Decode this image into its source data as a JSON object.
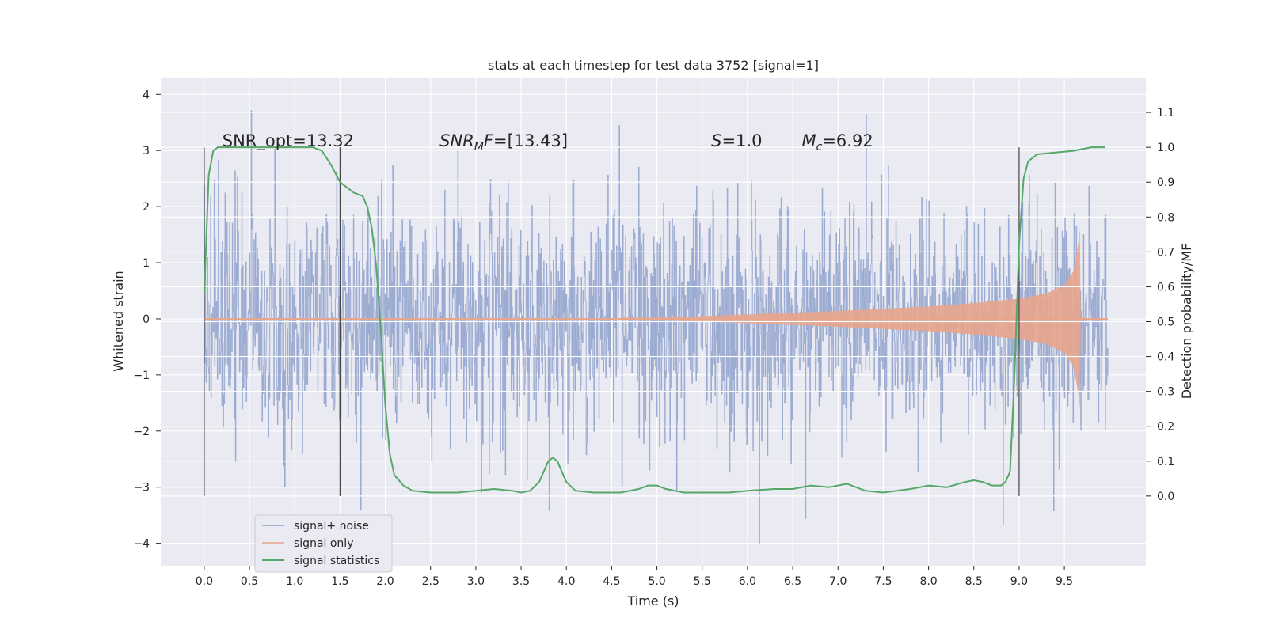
{
  "chart_data": {
    "type": "line",
    "title": "stats at each timestep for test data 3752 [signal=1]",
    "xlabel": "Time (s)",
    "ylabel": "Whitened strain",
    "y2label": "Detection probability/MF",
    "xlim": [
      -0.48,
      10.4
    ],
    "ylim": [
      -4.4,
      4.3
    ],
    "y2lim": [
      -0.2,
      1.2
    ],
    "x_ticks": [
      "0.0",
      "0.5",
      "1.0",
      "1.5",
      "2.0",
      "2.5",
      "3.0",
      "3.5",
      "4.0",
      "4.5",
      "5.0",
      "5.5",
      "6.0",
      "6.5",
      "7.0",
      "7.5",
      "8.0",
      "8.5",
      "9.0",
      "9.5"
    ],
    "y_ticks": [
      "4",
      "3",
      "2",
      "1",
      "0",
      "−1",
      "−2",
      "−3",
      "−4"
    ],
    "y2_ticks": [
      "1.1",
      "1.0",
      "0.9",
      "0.8",
      "0.7",
      "0.6",
      "0.5",
      "0.4",
      "0.3",
      "0.2",
      "0.1",
      "0.0"
    ],
    "grid": true,
    "legend_position": "lower-left",
    "series": [
      {
        "name": "signal+ noise",
        "color": "#8da0cb",
        "description_range": [
          -4.0,
          3.9
        ],
        "x_range": [
          0.0,
          9.98
        ]
      },
      {
        "name": "signal only",
        "color": "#e8a58c",
        "x_range": [
          0.0,
          9.98
        ],
        "envelope": {
          "x": [
            0.0,
            5.0,
            6.0,
            7.0,
            8.0,
            8.5,
            9.0,
            9.3,
            9.5,
            9.6,
            9.65,
            9.68
          ],
          "amp": [
            0.02,
            0.02,
            0.08,
            0.14,
            0.22,
            0.28,
            0.36,
            0.45,
            0.6,
            0.85,
            1.3,
            1.7
          ]
        }
      },
      {
        "name": "signal statistics",
        "color": "#55a868",
        "x": [
          0.0,
          0.05,
          0.1,
          0.15,
          0.2,
          0.4,
          0.6,
          0.8,
          1.0,
          1.2,
          1.3,
          1.4,
          1.5,
          1.55,
          1.65,
          1.75,
          1.8,
          1.85,
          1.9,
          1.95,
          2.0,
          2.05,
          2.1,
          2.2,
          2.3,
          2.5,
          2.8,
          3.0,
          3.2,
          3.4,
          3.5,
          3.6,
          3.7,
          3.8,
          3.85,
          3.9,
          4.0,
          4.1,
          4.3,
          4.6,
          4.8,
          4.9,
          5.0,
          5.1,
          5.3,
          5.6,
          5.8,
          6.0,
          6.3,
          6.5,
          6.7,
          6.9,
          7.1,
          7.3,
          7.5,
          7.8,
          8.0,
          8.2,
          8.4,
          8.5,
          8.6,
          8.7,
          8.8,
          8.85,
          8.9,
          8.95,
          9.0,
          9.05,
          9.1,
          9.2,
          9.4,
          9.6,
          9.8,
          9.95
        ],
        "y": [
          0.58,
          0.92,
          0.99,
          1.0,
          1.0,
          1.0,
          1.0,
          1.0,
          1.0,
          1.0,
          0.99,
          0.95,
          0.9,
          0.89,
          0.87,
          0.86,
          0.83,
          0.77,
          0.66,
          0.48,
          0.26,
          0.12,
          0.06,
          0.03,
          0.015,
          0.01,
          0.01,
          0.015,
          0.02,
          0.015,
          0.01,
          0.015,
          0.04,
          0.1,
          0.11,
          0.1,
          0.04,
          0.015,
          0.01,
          0.01,
          0.02,
          0.03,
          0.03,
          0.02,
          0.01,
          0.01,
          0.01,
          0.015,
          0.02,
          0.02,
          0.03,
          0.025,
          0.035,
          0.015,
          0.01,
          0.02,
          0.03,
          0.025,
          0.04,
          0.045,
          0.04,
          0.03,
          0.03,
          0.04,
          0.07,
          0.35,
          0.72,
          0.91,
          0.96,
          0.98,
          0.985,
          0.99,
          1.0,
          1.0
        ]
      }
    ],
    "vlines": [
      0.0,
      1.5,
      9.0
    ],
    "annotations": [
      {
        "name": "snr-opt",
        "x": 0.2,
        "text": "SNR_opt=13.32"
      },
      {
        "name": "snr-mf",
        "x": 2.6,
        "prefix": "SNR",
        "sub": "M",
        "suffix": "F=[13.43]"
      },
      {
        "name": "s-value",
        "x": 5.6,
        "prefix": "S",
        "sub": "",
        "suffix": "=1.0"
      },
      {
        "name": "mc-value",
        "x": 6.6,
        "prefix": "M",
        "sub": "c",
        "suffix": "=6.92"
      }
    ]
  }
}
